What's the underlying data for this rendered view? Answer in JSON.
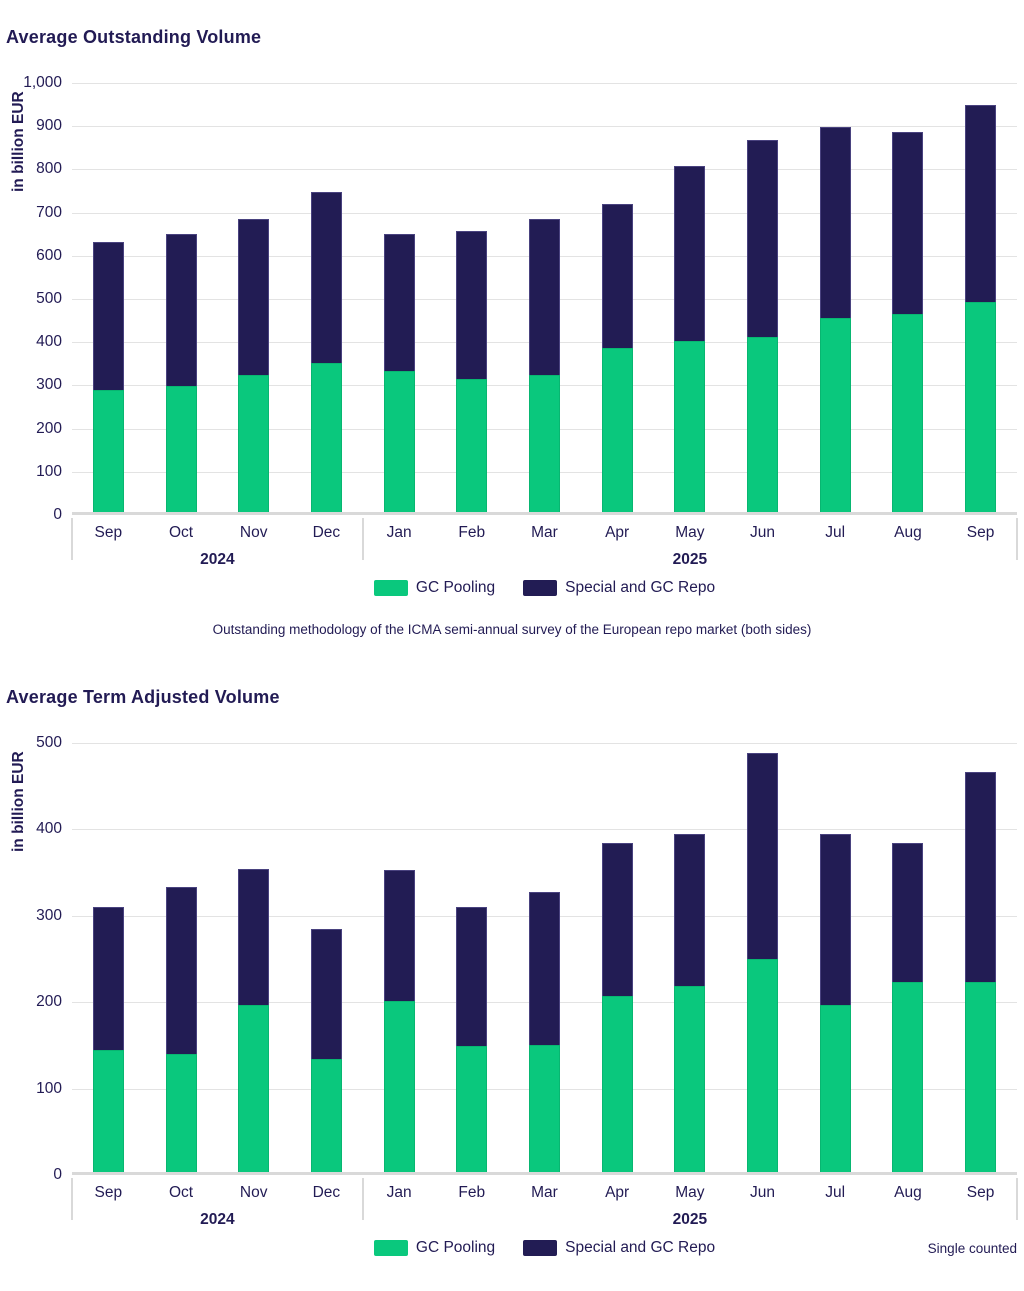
{
  "colors": {
    "gc_pooling": "#0ac87d",
    "special_and_gc_repo": "#221c54",
    "text": "#221b54",
    "gridline": "#e3e3e3",
    "axis": "#d9d9d9"
  },
  "legend": {
    "items": [
      {
        "label": "GC Pooling",
        "color": "#0ac87d"
      },
      {
        "label": "Special and GC Repo",
        "color": "#221c54"
      }
    ]
  },
  "chart_data": [
    {
      "type": "bar",
      "stacked": true,
      "title": "Average Outstanding Volume",
      "ylabel": "in billion EUR",
      "ylim": [
        0,
        1000
      ],
      "grid": true,
      "legend_position": "bottom",
      "ytick_labels": [
        "1,000",
        "900",
        "800",
        "700",
        "600",
        "500",
        "400",
        "300",
        "200",
        "100",
        "0"
      ],
      "categories": [
        "Sep",
        "Oct",
        "Nov",
        "Dec",
        "Jan",
        "Feb",
        "Mar",
        "Apr",
        "May",
        "Jun",
        "Jul",
        "Aug",
        "Sep"
      ],
      "year_groups": [
        {
          "label": "2024",
          "from": 0,
          "to": 3
        },
        {
          "label": "2025",
          "from": 4,
          "to": 12
        }
      ],
      "series": [
        {
          "name": "GC Pooling",
          "values": [
            282,
            291,
            316,
            344,
            326,
            309,
            317,
            379,
            396,
            405,
            449,
            459,
            485
          ]
        },
        {
          "name": "Special and GC Repo",
          "values": [
            343,
            352,
            362,
            396,
            316,
            342,
            361,
            334,
            405,
            457,
            441,
            421,
            457
          ]
        }
      ],
      "totals": [
        625,
        643,
        678,
        740,
        642,
        651,
        678,
        713,
        801,
        862,
        890,
        880,
        942
      ],
      "caption": "Outstanding methodology of the ICMA semi-annual survey of the European repo market (both sides)"
    },
    {
      "type": "bar",
      "stacked": true,
      "title": "Average Term Adjusted Volume",
      "ylabel": "in billion EUR",
      "ylim": [
        0,
        500
      ],
      "grid": true,
      "legend_position": "bottom",
      "ytick_labels": [
        "500",
        "400",
        "300",
        "200",
        "100",
        "0"
      ],
      "categories": [
        "Sep",
        "Oct",
        "Nov",
        "Dec",
        "Jan",
        "Feb",
        "Mar",
        "Apr",
        "May",
        "Jun",
        "Jul",
        "Aug",
        "Sep"
      ],
      "year_groups": [
        {
          "label": "2024",
          "from": 0,
          "to": 3
        },
        {
          "label": "2025",
          "from": 4,
          "to": 12
        }
      ],
      "series": [
        {
          "name": "GC Pooling",
          "values": [
            141,
            136,
            193,
            131,
            198,
            146,
            147,
            204,
            215,
            246,
            193,
            220,
            220
          ]
        },
        {
          "name": "Special and GC Repo",
          "values": [
            166,
            193,
            157,
            150,
            152,
            161,
            177,
            177,
            176,
            238,
            198,
            161,
            243
          ]
        }
      ],
      "totals": [
        307,
        329,
        350,
        281,
        350,
        307,
        324,
        381,
        391,
        484,
        391,
        381,
        463
      ],
      "note": "Single counted"
    }
  ]
}
